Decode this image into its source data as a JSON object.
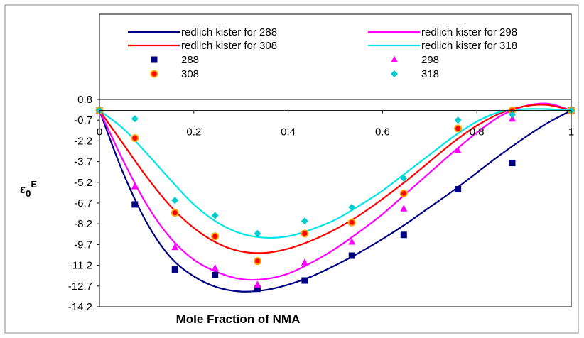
{
  "chart_data": {
    "type": "line",
    "title": "",
    "xlabel": "Mole Fraction of NMA",
    "ylabel": "ε0E",
    "xlim": [
      0,
      1
    ],
    "ylim": [
      -14.2,
      0.8
    ],
    "x_ticks": [
      0,
      0.2,
      0.4,
      0.6,
      0.8,
      1
    ],
    "x_tick_labels": [
      "0",
      "0.2",
      "0.4",
      "0.6",
      "0.8",
      "1"
    ],
    "y_ticks": [
      0.8,
      -0.7,
      -2.2,
      -3.7,
      -5.2,
      -6.7,
      -8.2,
      -9.7,
      -11.2,
      -12.7,
      -14.2
    ],
    "y_tick_labels": [
      "0.8",
      "-0.7",
      "-2.2",
      "-3.7",
      "-5.2",
      "-6.7",
      "-8.2",
      "-9.7",
      "-11.2",
      "-12.7",
      "-14.2"
    ],
    "grid": false,
    "legend_position": "top",
    "colors": {
      "288": "#000080",
      "298": "#ff00ff",
      "308": "#ff0000",
      "318": "#00e5e5",
      "marker_308_edge": "#ffa500"
    },
    "x": [
      0,
      0.075,
      0.16,
      0.245,
      0.335,
      0.435,
      0.535,
      0.645,
      0.76,
      0.875,
      1
    ],
    "series": [
      {
        "name": "288",
        "marker": "square",
        "color": "#000080",
        "values": [
          0,
          -6.8,
          -11.5,
          -11.9,
          -12.9,
          -12.3,
          -10.5,
          -9.0,
          -5.7,
          -3.8,
          0
        ]
      },
      {
        "name": "298",
        "marker": "triangle",
        "color": "#ff00ff",
        "values": [
          0,
          -5.5,
          -9.9,
          -11.4,
          -12.6,
          -11.0,
          -9.5,
          -7.1,
          -2.9,
          -0.6,
          0
        ]
      },
      {
        "name": "308",
        "marker": "circle",
        "color": "#ff0000",
        "values": [
          0,
          -2.0,
          -7.4,
          -9.1,
          -10.9,
          -8.9,
          -8.1,
          -6.0,
          -1.3,
          0,
          0
        ]
      },
      {
        "name": "318",
        "marker": "diamond",
        "color": "#00cccc",
        "values": [
          0,
          -0.6,
          -6.5,
          -7.6,
          -8.9,
          -8.0,
          -7.0,
          -4.9,
          -0.7,
          -0.3,
          0
        ]
      }
    ],
    "fits": [
      {
        "name": "redlich kister for 288",
        "color": "#000080",
        "x": [
          0,
          0.05,
          0.1,
          0.15,
          0.2,
          0.25,
          0.3,
          0.35,
          0.4,
          0.45,
          0.5,
          0.55,
          0.6,
          0.65,
          0.7,
          0.75,
          0.8,
          0.85,
          0.9,
          0.95,
          1
        ],
        "values": [
          0,
          -4.5,
          -8.1,
          -10.6,
          -12.0,
          -12.8,
          -13.1,
          -13.0,
          -12.6,
          -12.0,
          -11.2,
          -10.3,
          -9.3,
          -8.2,
          -7.0,
          -5.8,
          -4.5,
          -3.2,
          -2.0,
          -0.9,
          0
        ]
      },
      {
        "name": "redlich kister for 298",
        "color": "#ff00ff",
        "x": [
          0,
          0.05,
          0.1,
          0.15,
          0.2,
          0.25,
          0.3,
          0.35,
          0.4,
          0.45,
          0.5,
          0.55,
          0.6,
          0.65,
          0.7,
          0.75,
          0.8,
          0.85,
          0.9,
          0.95,
          1
        ],
        "values": [
          0,
          -3.6,
          -6.8,
          -9.2,
          -10.8,
          -11.7,
          -12.2,
          -12.2,
          -11.8,
          -11.0,
          -10.0,
          -8.8,
          -7.5,
          -6.0,
          -4.5,
          -3.0,
          -1.6,
          -0.4,
          0.3,
          0.5,
          0
        ]
      },
      {
        "name": "redlich kister for 308",
        "color": "#ff0000",
        "x": [
          0,
          0.05,
          0.1,
          0.15,
          0.2,
          0.25,
          0.3,
          0.35,
          0.4,
          0.45,
          0.5,
          0.55,
          0.6,
          0.65,
          0.7,
          0.75,
          0.8,
          0.85,
          0.9,
          0.95,
          1
        ],
        "values": [
          0,
          -2.4,
          -4.8,
          -6.9,
          -8.5,
          -9.6,
          -10.2,
          -10.3,
          -10.0,
          -9.4,
          -8.6,
          -7.6,
          -6.4,
          -5.1,
          -3.7,
          -2.3,
          -1.1,
          -0.2,
          0.3,
          0.4,
          0
        ]
      },
      {
        "name": "redlich kister for 318",
        "color": "#00e5e5",
        "x": [
          0,
          0.05,
          0.1,
          0.15,
          0.2,
          0.25,
          0.3,
          0.35,
          0.4,
          0.45,
          0.5,
          0.55,
          0.6,
          0.65,
          0.7,
          0.75,
          0.8,
          0.85,
          0.9,
          0.95,
          1
        ],
        "values": [
          0,
          -1.3,
          -3.1,
          -5.0,
          -6.8,
          -8.1,
          -8.9,
          -9.2,
          -9.1,
          -8.6,
          -7.9,
          -6.9,
          -5.8,
          -4.5,
          -3.2,
          -1.9,
          -0.8,
          -0.1,
          0.1,
          0.1,
          0
        ]
      }
    ],
    "legend": {
      "lines": [
        "redlich kister for 288",
        "redlich kister for 298",
        "redlich kister for 308",
        "redlich kister for 318"
      ],
      "markers": [
        "288",
        "298",
        "308",
        "318"
      ]
    }
  }
}
